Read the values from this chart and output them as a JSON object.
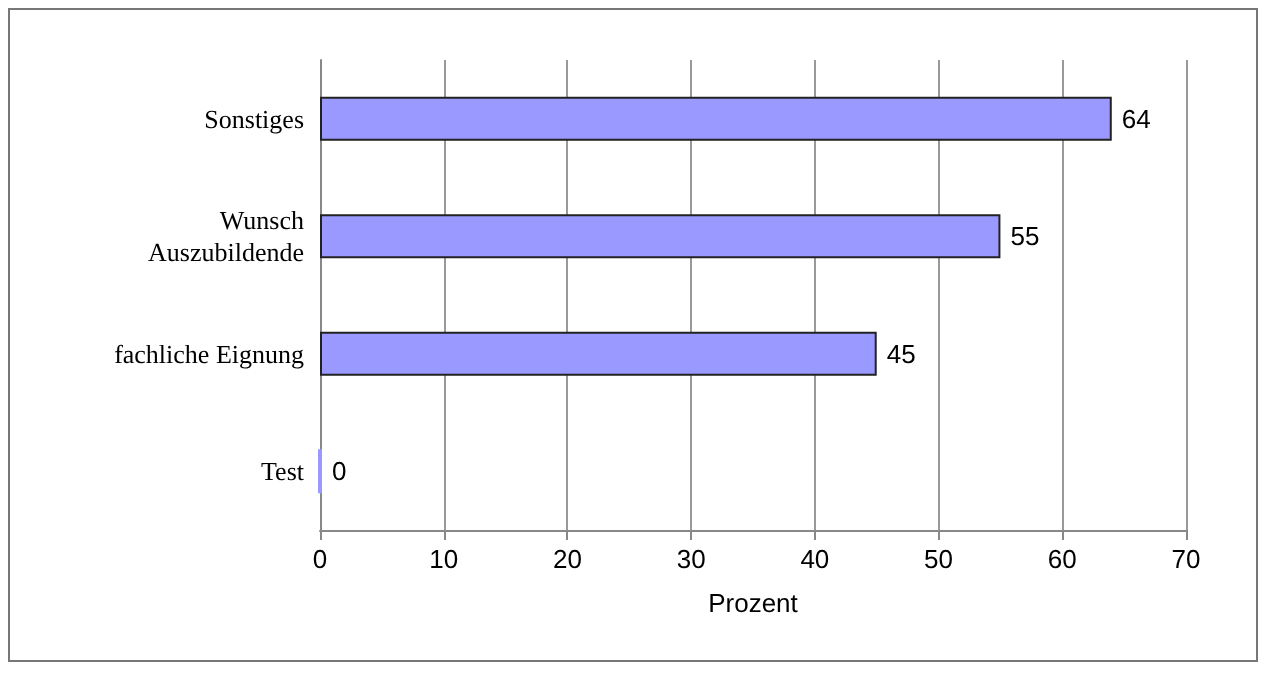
{
  "chart_data": {
    "type": "bar",
    "orientation": "horizontal",
    "xlabel": "Prozent",
    "categories": [
      "Sonstiges",
      "Wunsch\nAuszubildende",
      "fachliche Eignung",
      "Test"
    ],
    "values": [
      64,
      55,
      45,
      0
    ],
    "color": "#9999ff",
    "data_labels": true,
    "xlim": [
      0,
      70
    ],
    "xticks": [
      0,
      10,
      20,
      30,
      40,
      50,
      60,
      70
    ],
    "grid": "x"
  }
}
